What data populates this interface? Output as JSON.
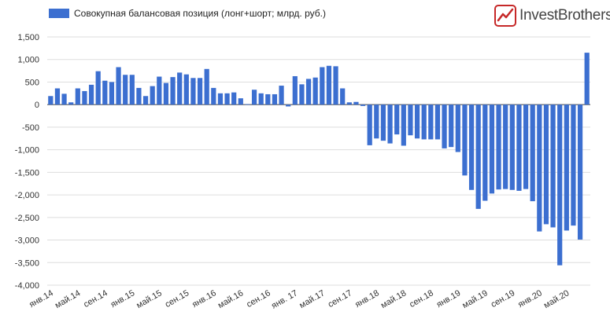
{
  "brand": {
    "name": "InvestBrothers",
    "accent": "#c62828"
  },
  "chart_data": {
    "type": "bar",
    "legend": "Совокупная балансовая позиция (лонг+шорт; млрд. руб.)",
    "bar_color": "#3c6fd0",
    "ylim": [
      -4000,
      1500
    ],
    "yticks": [
      1500,
      1000,
      500,
      0,
      -500,
      -1000,
      -1500,
      -2000,
      -2500,
      -3000,
      -3500,
      -4000
    ],
    "ytick_labels": [
      "1,500",
      "1,000",
      "500",
      "0",
      "-500",
      "-1,000",
      "-1,500",
      "-2,000",
      "-2,500",
      "-3,000",
      "-3,500",
      "-4,000"
    ],
    "grid": true,
    "x_labels": [
      {
        "index": 0,
        "label": "янв.14"
      },
      {
        "index": 4,
        "label": "май.14"
      },
      {
        "index": 8,
        "label": "сен.14"
      },
      {
        "index": 12,
        "label": "янв.15"
      },
      {
        "index": 16,
        "label": "май.15"
      },
      {
        "index": 20,
        "label": "сен.15"
      },
      {
        "index": 24,
        "label": "янв.16"
      },
      {
        "index": 28,
        "label": "май.16"
      },
      {
        "index": 32,
        "label": "сен.16"
      },
      {
        "index": 36,
        "label": "янв. 17"
      },
      {
        "index": 40,
        "label": "май.17"
      },
      {
        "index": 44,
        "label": "сен.17"
      },
      {
        "index": 48,
        "label": "янв.18"
      },
      {
        "index": 52,
        "label": "май.18"
      },
      {
        "index": 56,
        "label": "сен.18"
      },
      {
        "index": 60,
        "label": "янв.19"
      },
      {
        "index": 64,
        "label": "май.19"
      },
      {
        "index": 68,
        "label": "сен.19"
      },
      {
        "index": 72,
        "label": "янв.20"
      },
      {
        "index": 76,
        "label": "май.20"
      }
    ],
    "values": [
      190,
      360,
      240,
      50,
      360,
      300,
      440,
      740,
      530,
      500,
      830,
      660,
      660,
      370,
      190,
      410,
      620,
      480,
      610,
      710,
      670,
      590,
      590,
      790,
      370,
      250,
      250,
      270,
      140,
      10,
      330,
      250,
      230,
      230,
      420,
      -40,
      630,
      450,
      570,
      600,
      830,
      860,
      850,
      360,
      50,
      60,
      -30,
      -900,
      -750,
      -800,
      -860,
      -660,
      -910,
      -680,
      -750,
      -770,
      -770,
      -770,
      -970,
      -940,
      -1050,
      -1570,
      -1890,
      -2310,
      -2130,
      -1970,
      -1880,
      -1870,
      -1890,
      -1910,
      -1870,
      -2140,
      -2810,
      -2650,
      -2720,
      -3560,
      -2790,
      -2680,
      -2990,
      1150
    ]
  }
}
